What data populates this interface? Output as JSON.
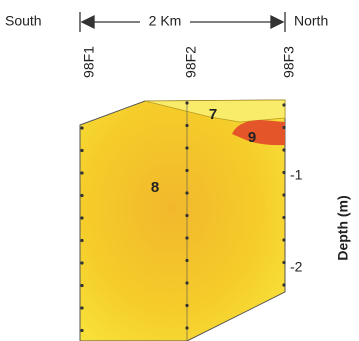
{
  "header": {
    "left": "South",
    "scale": "2 Km",
    "right": "North"
  },
  "wells": [
    "98F1",
    "98F2",
    "98F3"
  ],
  "units": [
    "7",
    "9",
    "8"
  ],
  "depth_axis": {
    "title": "Depth (m)",
    "ticks": [
      "-1",
      "-2"
    ]
  }
}
